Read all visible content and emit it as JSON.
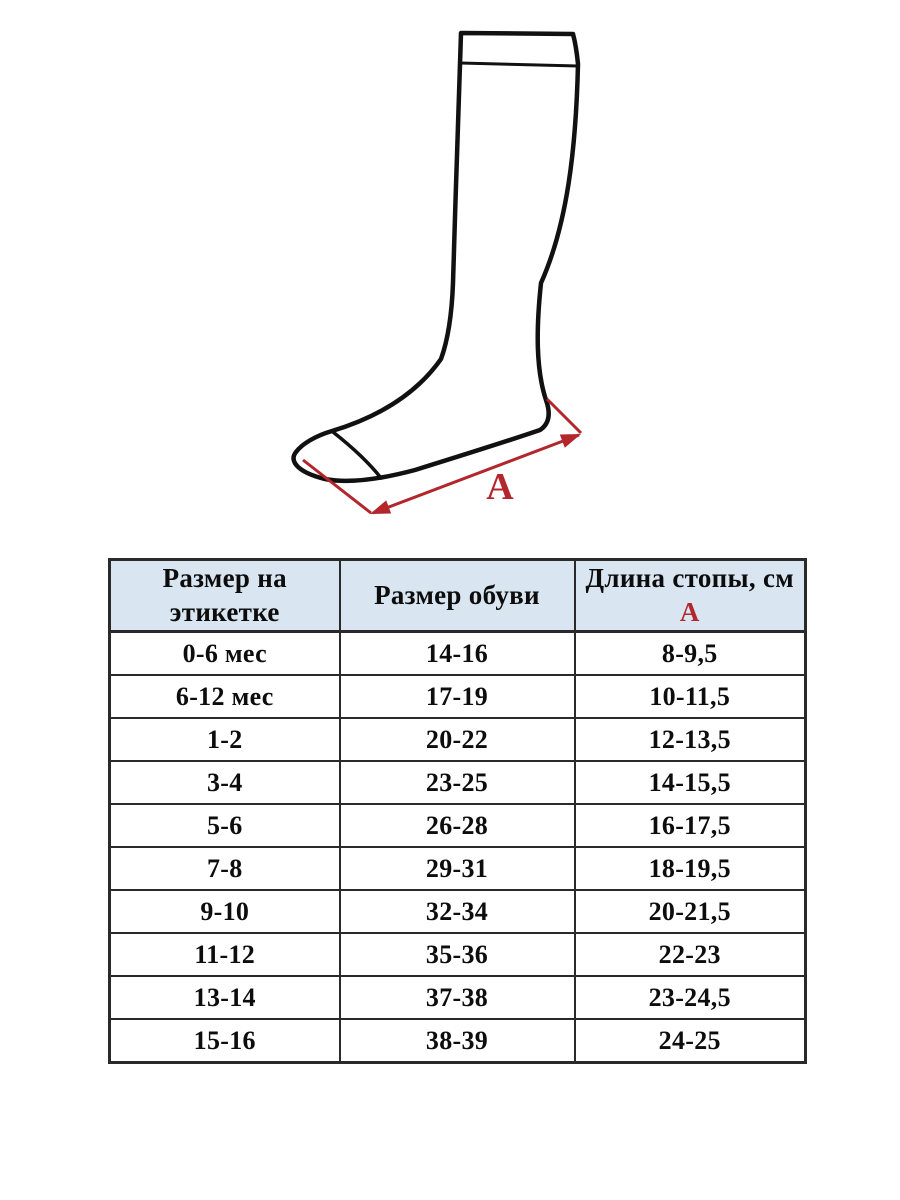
{
  "colors": {
    "accent_red": "#b2262c",
    "sock_outline": "#111111",
    "header_bg": "#d9e6f2",
    "table_border": "#2a2a2a"
  },
  "diagram": {
    "measure_label": "А"
  },
  "table": {
    "header": {
      "col1": "Размер на этикетке",
      "col2": "Размер обуви",
      "col3_line1": "Длина стопы, см",
      "col3_line2": "А"
    },
    "rows": [
      [
        "0-6 мес",
        "14-16",
        "8-9,5"
      ],
      [
        "6-12 мес",
        "17-19",
        "10-11,5"
      ],
      [
        "1-2",
        "20-22",
        "12-13,5"
      ],
      [
        "3-4",
        "23-25",
        "14-15,5"
      ],
      [
        "5-6",
        "26-28",
        "16-17,5"
      ],
      [
        "7-8",
        "29-31",
        "18-19,5"
      ],
      [
        "9-10",
        "32-34",
        "20-21,5"
      ],
      [
        "11-12",
        "35-36",
        "22-23"
      ],
      [
        "13-14",
        "37-38",
        "23-24,5"
      ],
      [
        "15-16",
        "38-39",
        "24-25"
      ]
    ]
  }
}
